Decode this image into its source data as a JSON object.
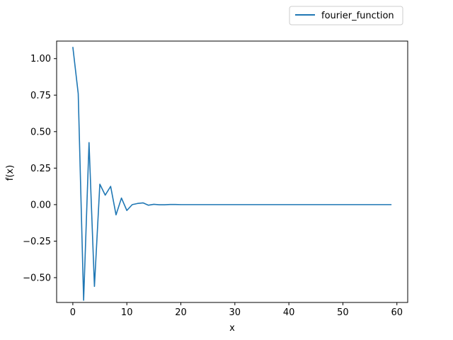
{
  "chart_data": {
    "type": "line",
    "xlabel": "x",
    "ylabel": "f(x)",
    "xlim": [
      -3,
      62
    ],
    "ylim": [
      -0.67,
      1.12
    ],
    "xticks": [
      0,
      10,
      20,
      30,
      40,
      50,
      60
    ],
    "yticks": [
      -0.5,
      -0.25,
      0.0,
      0.25,
      0.5,
      0.75,
      1.0
    ],
    "xtick_labels": [
      "0",
      "10",
      "20",
      "30",
      "40",
      "50",
      "60"
    ],
    "ytick_labels": [
      "−0.50",
      "−0.25",
      "0.00",
      "0.25",
      "0.50",
      "0.75",
      "1.00"
    ],
    "grid": false,
    "legend_position": "top-right, outside above axes",
    "series": [
      {
        "name": "fourier_function",
        "color": "#1f77b4",
        "x": [
          0,
          1,
          2,
          3,
          4,
          5,
          6,
          7,
          8,
          9,
          10,
          11,
          12,
          13,
          14,
          15,
          16,
          17,
          18,
          19,
          20,
          21,
          22,
          23,
          24,
          25,
          26,
          27,
          28,
          29,
          30,
          31,
          32,
          33,
          34,
          35,
          36,
          37,
          38,
          39,
          40,
          41,
          42,
          43,
          44,
          45,
          46,
          47,
          48,
          49,
          50,
          51,
          52,
          53,
          54,
          55,
          56,
          57,
          58,
          59
        ],
        "values": [
          1.08,
          0.76,
          -0.655,
          0.425,
          -0.56,
          0.14,
          0.065,
          0.125,
          -0.07,
          0.045,
          -0.04,
          0.0,
          0.008,
          0.012,
          -0.004,
          0.002,
          -0.001,
          -0.001,
          0.001,
          0.001,
          0.0,
          0.0,
          0.0,
          0.0,
          0.0,
          0.0,
          0.0,
          0.0,
          0.0,
          0.0,
          0.0,
          0.0,
          0.0,
          0.0,
          0.0,
          0.0,
          0.0,
          0.0,
          0.0,
          0.0,
          0.0,
          0.0,
          0.0,
          0.0,
          0.0,
          0.0,
          0.0,
          0.0,
          0.0,
          0.0,
          0.0,
          0.0,
          0.0,
          0.0,
          0.0,
          0.0,
          0.0,
          0.0,
          0.0,
          0.0
        ]
      }
    ]
  }
}
